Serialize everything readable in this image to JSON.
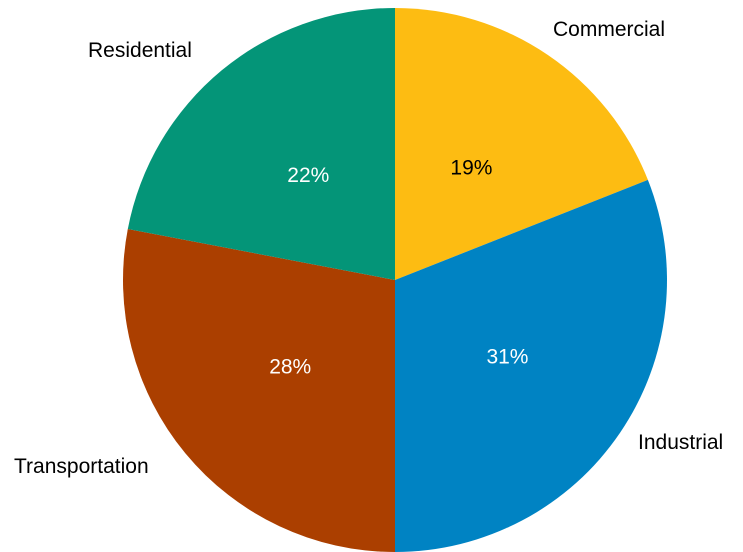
{
  "chart_data": {
    "type": "pie",
    "title": "",
    "start_angle_deg": 0,
    "direction": "clockwise",
    "slices": [
      {
        "label": "Commercial",
        "value": 19,
        "display": "19%",
        "color": "#FDBC12",
        "value_text_color": "#000000"
      },
      {
        "label": "Industrial",
        "value": 31,
        "display": "31%",
        "color": "#0083C3",
        "value_text_color": "#ffffff"
      },
      {
        "label": "Transportation",
        "value": 28,
        "display": "28%",
        "color": "#AB3F00",
        "value_text_color": "#ffffff"
      },
      {
        "label": "Residential",
        "value": 22,
        "display": "22%",
        "color": "#049578",
        "value_text_color": "#ffffff"
      }
    ],
    "legend": "none",
    "grid": false
  }
}
